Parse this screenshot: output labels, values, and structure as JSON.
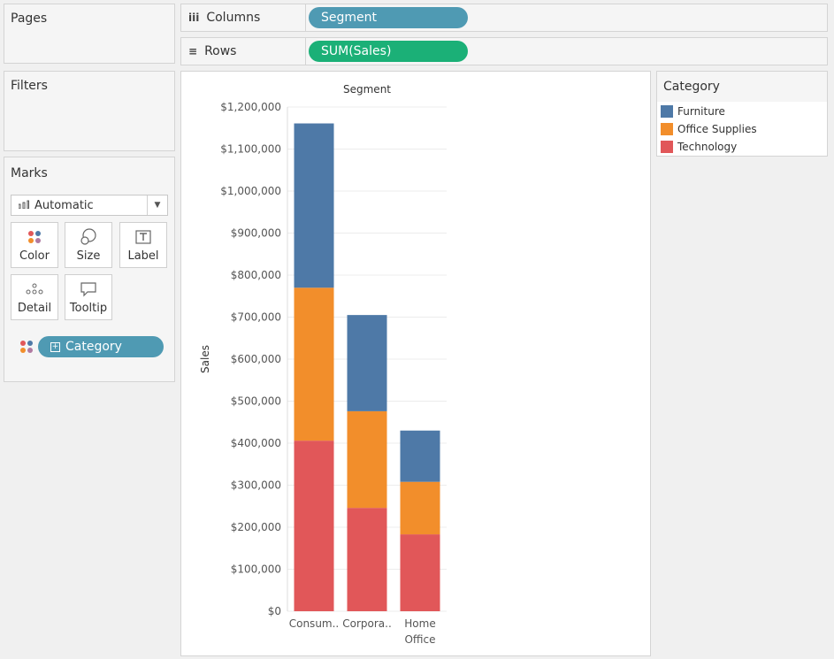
{
  "shelves": {
    "pages_title": "Pages",
    "columns": {
      "icon": "iii",
      "label": "Columns",
      "pill": "Segment"
    },
    "rows": {
      "icon": "≡",
      "label": "Rows",
      "pill": "SUM(Sales)"
    },
    "filters_title": "Filters"
  },
  "marks": {
    "title": "Marks",
    "mark_type": "Automatic",
    "buttons": {
      "color": "Color",
      "size": "Size",
      "label": "Label",
      "detail": "Detail",
      "tooltip": "Tooltip"
    },
    "color_pill": "Category"
  },
  "legend": {
    "title": "Category",
    "items": [
      {
        "label": "Furniture",
        "color": "#4e79a7"
      },
      {
        "label": "Office Supplies",
        "color": "#f28e2b"
      },
      {
        "label": "Technology",
        "color": "#e15759"
      }
    ]
  },
  "chart_data": {
    "type": "bar",
    "stacked": true,
    "title": "Segment",
    "xlabel": "",
    "ylabel": "Sales",
    "categories": [
      "Consum..",
      "Corpora..",
      "Home Office"
    ],
    "series": [
      {
        "name": "Technology",
        "color": "#e15759",
        "values": [
          406000,
          246000,
          183000
        ]
      },
      {
        "name": "Office Supplies",
        "color": "#f28e2b",
        "values": [
          364000,
          230000,
          125000
        ]
      },
      {
        "name": "Furniture",
        "color": "#4e79a7",
        "values": [
          391000,
          229000,
          122000
        ]
      }
    ],
    "ylim": [
      0,
      1200000
    ],
    "yticks": [
      "$1,200,000",
      "$1,100,000",
      "$1,000,000",
      "$900,000",
      "$800,000",
      "$700,000",
      "$600,000",
      "$500,000",
      "$400,000",
      "$300,000",
      "$200,000",
      "$100,000",
      "$0"
    ],
    "grid": true
  }
}
